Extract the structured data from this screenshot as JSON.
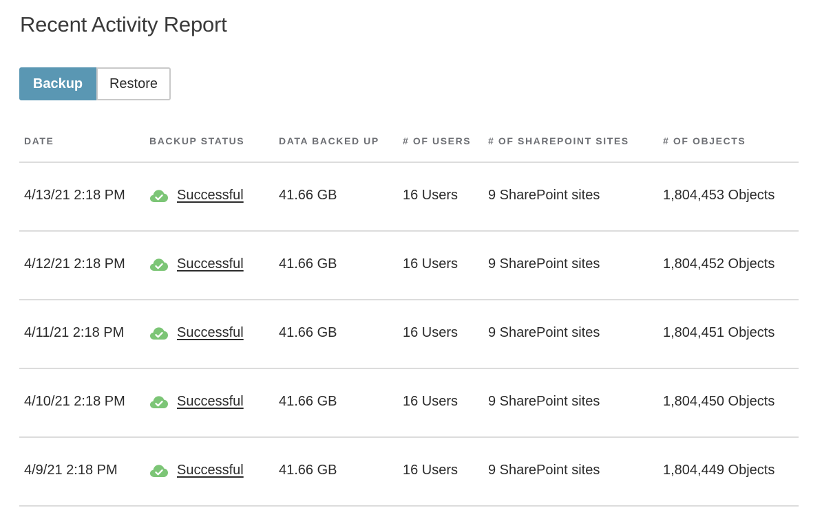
{
  "title": "Recent Activity Report",
  "tabs": [
    {
      "label": "Backup",
      "active": true
    },
    {
      "label": "Restore",
      "active": false
    }
  ],
  "columns": [
    "DATE",
    "BACKUP STATUS",
    "DATA BACKED UP",
    "# OF USERS",
    "# OF SHAREPOINT SITES",
    "# OF OBJECTS"
  ],
  "rows": [
    {
      "date": "4/13/21 2:18 PM",
      "status": "Successful",
      "data": "41.66 GB",
      "users": "16 Users",
      "sites": "9 SharePoint sites",
      "objects": "1,804,453 Objects"
    },
    {
      "date": "4/12/21 2:18 PM",
      "status": "Successful",
      "data": "41.66 GB",
      "users": "16 Users",
      "sites": "9 SharePoint sites",
      "objects": "1,804,452 Objects"
    },
    {
      "date": "4/11/21 2:18 PM",
      "status": "Successful",
      "data": "41.66 GB",
      "users": "16 Users",
      "sites": "9 SharePoint sites",
      "objects": "1,804,451 Objects"
    },
    {
      "date": "4/10/21 2:18 PM",
      "status": "Successful",
      "data": "41.66 GB",
      "users": "16 Users",
      "sites": "9 SharePoint sites",
      "objects": "1,804,450 Objects"
    },
    {
      "date": "4/9/21 2:18 PM",
      "status": "Successful",
      "data": "41.66 GB",
      "users": "16 Users",
      "sites": "9 SharePoint sites",
      "objects": "1,804,449 Objects"
    }
  ],
  "colors": {
    "accent": "#5a97b3",
    "success_icon": "#7cc576",
    "divider": "#dcdcdc"
  },
  "icons": {
    "status": "cloud-check-icon"
  }
}
